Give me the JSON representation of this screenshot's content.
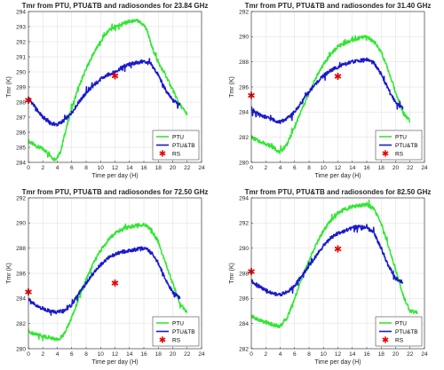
{
  "figure": {
    "panel_count": 4
  },
  "chart_data": [
    {
      "type": "line",
      "title": "Tmr from PTU, PTU&TB and radiosondes for 23.84 GHz",
      "xlabel": "Time per day (H)",
      "ylabel": "Tmr (K)",
      "xlim": [
        0,
        24
      ],
      "ylim": [
        284,
        294
      ],
      "xticks": [
        0,
        2,
        4,
        6,
        8,
        10,
        12,
        14,
        16,
        18,
        20,
        22,
        24
      ],
      "yticks": [
        284,
        285,
        286,
        287,
        288,
        289,
        290,
        291,
        292,
        293,
        294
      ],
      "grid": true,
      "legend_position": "bottom-right",
      "series": [
        {
          "name": "PTU",
          "kind": "line",
          "color": "#33e633",
          "x": [
            0,
            1,
            2,
            3,
            3.5,
            4,
            4.5,
            5,
            6,
            7,
            8,
            9,
            10,
            11,
            12,
            13,
            14,
            15,
            16,
            16.5,
            17,
            18,
            19,
            20,
            21,
            22
          ],
          "y": [
            285.4,
            285.1,
            284.9,
            284.5,
            284.2,
            284.3,
            284.8,
            285.8,
            287.6,
            289.0,
            290.2,
            291.2,
            292.0,
            292.7,
            293.0,
            293.2,
            293.3,
            293.4,
            293.1,
            292.7,
            291.8,
            290.6,
            289.8,
            288.8,
            287.8,
            287.2
          ]
        },
        {
          "name": "PTU&TB",
          "kind": "line",
          "color": "#1a1acc",
          "x": [
            0,
            1,
            2,
            3,
            4,
            5,
            6,
            7,
            8,
            9,
            10,
            11,
            12,
            13,
            14,
            15,
            16,
            17,
            18,
            19,
            20,
            21
          ],
          "y": [
            288.3,
            287.6,
            287.0,
            286.6,
            286.5,
            286.8,
            287.3,
            288.0,
            288.6,
            289.1,
            289.5,
            289.8,
            290.0,
            290.3,
            290.5,
            290.6,
            290.7,
            290.5,
            289.8,
            288.8,
            288.1,
            287.9
          ]
        },
        {
          "name": "RS",
          "kind": "scatter",
          "color": "#e60000",
          "x": [
            0,
            12
          ],
          "y": [
            288.1,
            289.7
          ]
        }
      ]
    },
    {
      "type": "line",
      "title": "Tmr from PTU, PTU&TB and radiosondes for 31.40 GHz",
      "xlabel": "Time per day (H)",
      "ylabel": "Tmr (K)",
      "xlim": [
        0,
        24
      ],
      "ylim": [
        280,
        292
      ],
      "xticks": [
        0,
        2,
        4,
        6,
        8,
        10,
        12,
        14,
        16,
        18,
        20,
        22,
        24
      ],
      "yticks": [
        280,
        282,
        284,
        286,
        288,
        290,
        292
      ],
      "grid": true,
      "legend_position": "bottom-right",
      "series": [
        {
          "name": "PTU",
          "kind": "line",
          "color": "#33e633",
          "x": [
            0,
            1,
            2,
            3,
            4,
            5,
            6,
            7,
            8,
            9,
            10,
            11,
            12,
            13,
            14,
            15,
            16,
            17,
            18,
            19,
            20,
            21,
            22
          ],
          "y": [
            282.0,
            281.7,
            281.5,
            281.2,
            280.8,
            281.5,
            282.8,
            284.2,
            285.5,
            286.8,
            287.8,
            288.6,
            289.2,
            289.5,
            289.7,
            289.9,
            290.0,
            289.6,
            288.8,
            287.3,
            285.6,
            284.0,
            283.3
          ]
        },
        {
          "name": "PTU&TB",
          "kind": "line",
          "color": "#1a1acc",
          "x": [
            0,
            1,
            2,
            3,
            4,
            5,
            6,
            7,
            8,
            9,
            10,
            11,
            12,
            13,
            14,
            15,
            16,
            17,
            18,
            19,
            20,
            21
          ],
          "y": [
            284.3,
            283.8,
            283.6,
            283.4,
            283.2,
            283.5,
            284.0,
            284.8,
            285.6,
            286.3,
            286.9,
            287.3,
            287.6,
            287.8,
            288.0,
            288.1,
            288.2,
            287.9,
            287.0,
            285.8,
            284.8,
            284.3
          ]
        },
        {
          "name": "RS",
          "kind": "scatter",
          "color": "#e60000",
          "x": [
            0,
            12
          ],
          "y": [
            285.3,
            286.8
          ]
        }
      ]
    },
    {
      "type": "line",
      "title": "Tmr from PTU, PTU&TB and radiosondes for 72.50 GHz",
      "xlabel": "Time per day (H)",
      "ylabel": "Tmr (K)",
      "xlim": [
        0,
        24
      ],
      "ylim": [
        280,
        292
      ],
      "xticks": [
        0,
        2,
        4,
        6,
        8,
        10,
        12,
        14,
        16,
        18,
        20,
        22,
        24
      ],
      "yticks": [
        280,
        282,
        284,
        286,
        288,
        290,
        292
      ],
      "grid": true,
      "legend_position": "bottom-right",
      "series": [
        {
          "name": "PTU",
          "kind": "line",
          "color": "#33e633",
          "x": [
            0,
            1,
            2,
            3,
            4,
            5,
            6,
            7,
            8,
            9,
            10,
            11,
            12,
            13,
            14,
            15,
            16,
            17,
            18,
            19,
            20,
            21,
            22
          ],
          "y": [
            281.3,
            281.2,
            281.0,
            280.9,
            280.7,
            281.2,
            282.5,
            284.0,
            285.5,
            286.8,
            287.8,
            288.6,
            289.2,
            289.5,
            289.7,
            289.8,
            289.9,
            289.5,
            288.5,
            286.8,
            285.2,
            283.6,
            282.9
          ]
        },
        {
          "name": "PTU&TB",
          "kind": "line",
          "color": "#1a1acc",
          "x": [
            0,
            1,
            2,
            3,
            4,
            5,
            6,
            7,
            8,
            9,
            10,
            11,
            12,
            13,
            14,
            15,
            16,
            17,
            18,
            19,
            20,
            21
          ],
          "y": [
            284.0,
            283.4,
            283.2,
            283.0,
            282.9,
            283.0,
            283.5,
            284.4,
            285.2,
            286.0,
            286.7,
            287.2,
            287.5,
            287.7,
            287.8,
            287.9,
            288.0,
            287.7,
            286.8,
            285.5,
            284.5,
            284.0
          ]
        },
        {
          "name": "RS",
          "kind": "scatter",
          "color": "#e60000",
          "x": [
            0,
            12
          ],
          "y": [
            284.5,
            285.2
          ]
        }
      ]
    },
    {
      "type": "line",
      "title": "Tmr from PTU, PTU&TB and radiosondes for 82.50 GHz",
      "xlabel": "Time per day (H)",
      "ylabel": "Tmr (K)",
      "xlim": [
        0,
        24
      ],
      "ylim": [
        282,
        294
      ],
      "xticks": [
        0,
        2,
        4,
        6,
        8,
        10,
        12,
        14,
        16,
        18,
        20,
        22,
        24
      ],
      "yticks": [
        282,
        284,
        286,
        288,
        290,
        292,
        294
      ],
      "grid": true,
      "legend_position": "bottom-right",
      "series": [
        {
          "name": "PTU",
          "kind": "line",
          "color": "#33e633",
          "x": [
            0,
            1,
            2,
            3,
            4,
            5,
            6,
            7,
            8,
            9,
            10,
            11,
            12,
            13,
            14,
            15,
            16,
            17,
            18,
            19,
            20,
            21,
            22,
            23
          ],
          "y": [
            284.6,
            284.3,
            284.1,
            283.9,
            283.8,
            284.5,
            286.0,
            287.6,
            289.0,
            290.3,
            291.4,
            292.2,
            292.8,
            293.1,
            293.3,
            293.4,
            293.5,
            293.1,
            292.0,
            290.2,
            288.3,
            286.3,
            285.0,
            284.9
          ]
        },
        {
          "name": "PTU&TB",
          "kind": "line",
          "color": "#1a1acc",
          "x": [
            0,
            1,
            2,
            3,
            4,
            5,
            6,
            7,
            8,
            9,
            10,
            11,
            12,
            13,
            14,
            15,
            16,
            17,
            18,
            19,
            20,
            21
          ],
          "y": [
            287.4,
            287.0,
            286.6,
            286.4,
            286.3,
            286.5,
            287.0,
            287.8,
            288.6,
            289.4,
            290.2,
            290.8,
            291.2,
            291.4,
            291.6,
            291.7,
            291.6,
            291.2,
            290.0,
            288.6,
            287.6,
            287.3
          ]
        },
        {
          "name": "RS",
          "kind": "scatter",
          "color": "#e60000",
          "x": [
            0,
            12
          ],
          "y": [
            288.1,
            289.9
          ]
        }
      ]
    }
  ]
}
